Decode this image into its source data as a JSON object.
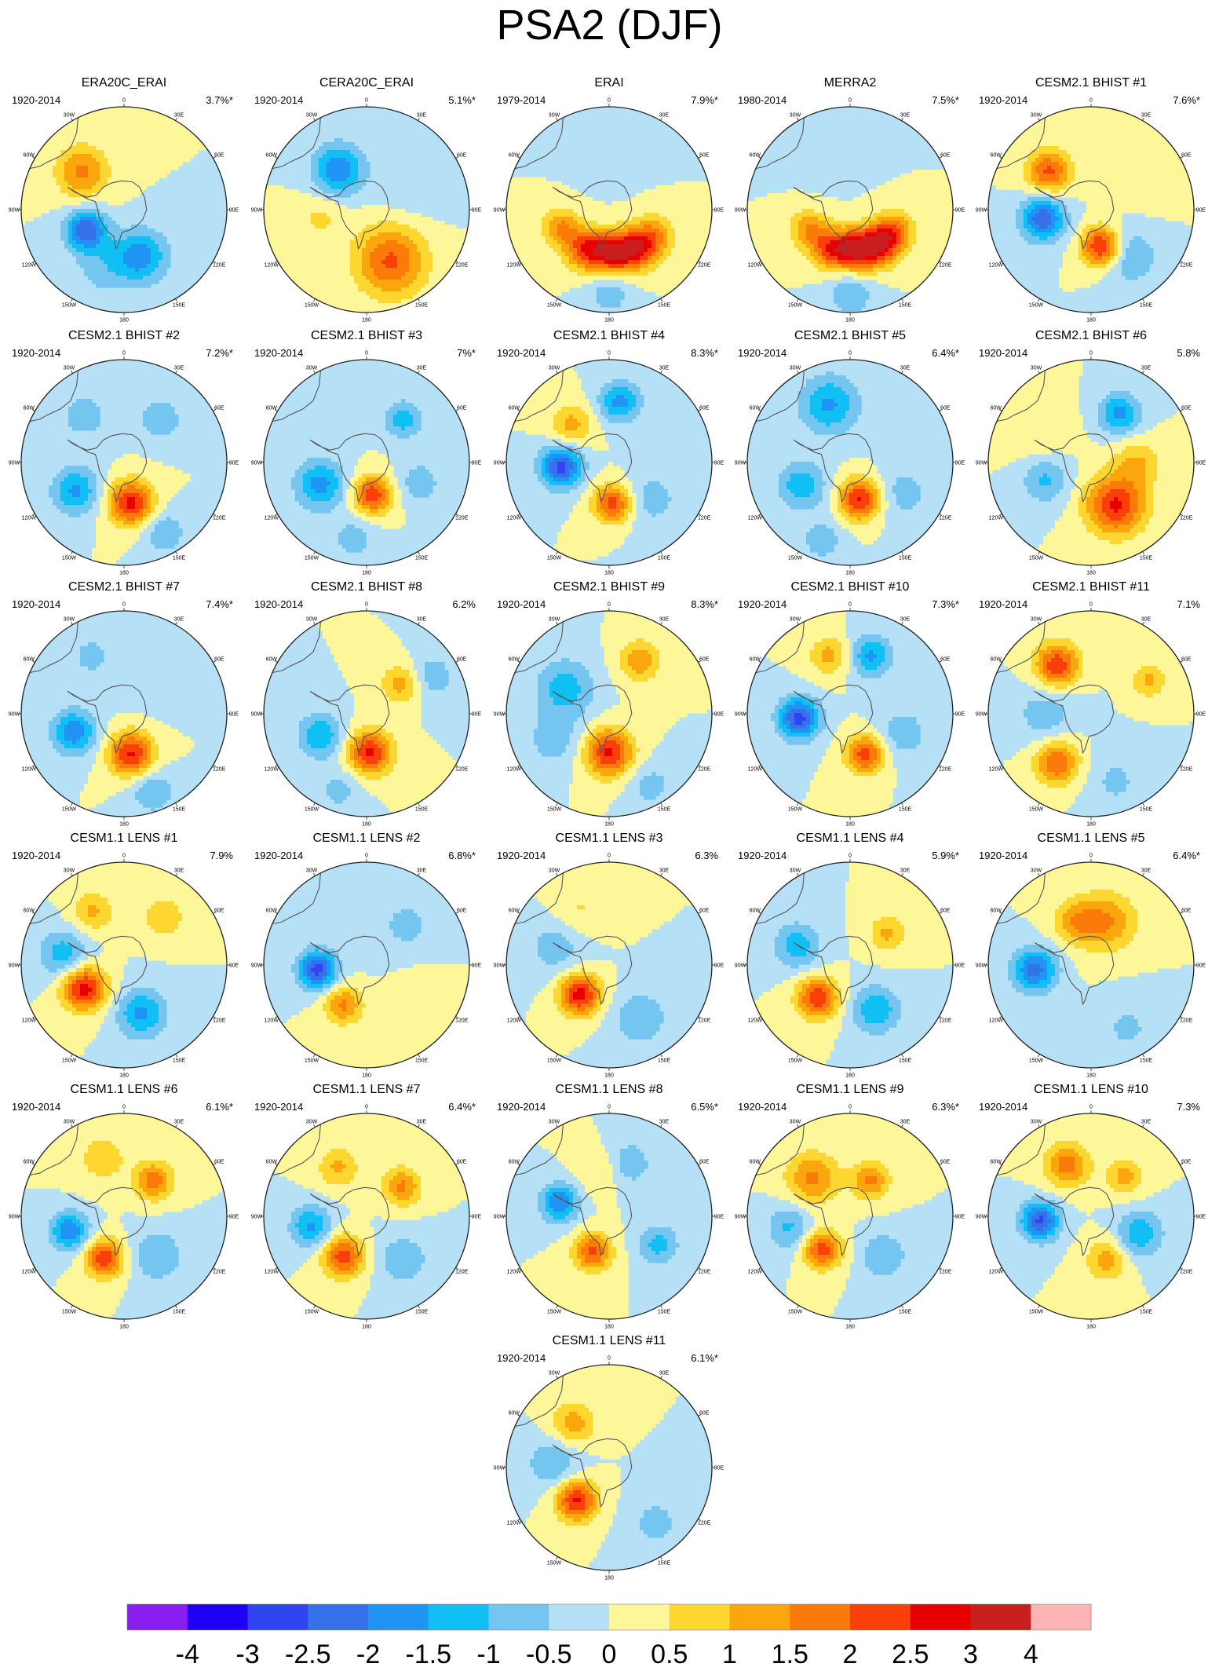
{
  "title": "PSA2 (DJF)",
  "lon_labels": [
    "0",
    "30E",
    "60E",
    "90E",
    "120E",
    "150E",
    "180",
    "150W",
    "120W",
    "90W",
    "60W",
    "30W"
  ],
  "panels": [
    {
      "title": "ERA20C_ERAI",
      "period": "1920-2014",
      "pct": "3.7%*"
    },
    {
      "title": "CERA20C_ERAI",
      "period": "1920-2014",
      "pct": "5.1%*"
    },
    {
      "title": "ERAI",
      "period": "1979-2014",
      "pct": "7.9%*"
    },
    {
      "title": "MERRA2",
      "period": "1980-2014",
      "pct": "7.5%*"
    },
    {
      "title": "CESM2.1 BHIST #1",
      "period": "1920-2014",
      "pct": "7.6%*"
    },
    {
      "title": "CESM2.1 BHIST #2",
      "period": "1920-2014",
      "pct": "7.2%*"
    },
    {
      "title": "CESM2.1 BHIST #3",
      "period": "1920-2014",
      "pct": "7%*"
    },
    {
      "title": "CESM2.1 BHIST #4",
      "period": "1920-2014",
      "pct": "8.3%*"
    },
    {
      "title": "CESM2.1 BHIST #5",
      "period": "1920-2014",
      "pct": "6.4%*"
    },
    {
      "title": "CESM2.1 BHIST #6",
      "period": "1920-2014",
      "pct": "5.8%"
    },
    {
      "title": "CESM2.1 BHIST #7",
      "period": "1920-2014",
      "pct": "7.4%*"
    },
    {
      "title": "CESM2.1 BHIST #8",
      "period": "1920-2014",
      "pct": "6.2%"
    },
    {
      "title": "CESM2.1 BHIST #9",
      "period": "1920-2014",
      "pct": "8.3%*"
    },
    {
      "title": "CESM2.1 BHIST #10",
      "period": "1920-2014",
      "pct": "7.3%*"
    },
    {
      "title": "CESM2.1 BHIST #11",
      "period": "1920-2014",
      "pct": "7.1%"
    },
    {
      "title": "CESM1.1 LENS #1",
      "period": "1920-2014",
      "pct": "7.9%"
    },
    {
      "title": "CESM1.1 LENS #2",
      "period": "1920-2014",
      "pct": "6.8%*"
    },
    {
      "title": "CESM1.1 LENS #3",
      "period": "1920-2014",
      "pct": "6.3%"
    },
    {
      "title": "CESM1.1 LENS #4",
      "period": "1920-2014",
      "pct": "5.9%*"
    },
    {
      "title": "CESM1.1 LENS #5",
      "period": "1920-2014",
      "pct": "6.4%*"
    },
    {
      "title": "CESM1.1 LENS #6",
      "period": "1920-2014",
      "pct": "6.1%*"
    },
    {
      "title": "CESM1.1 LENS #7",
      "period": "1920-2014",
      "pct": "6.4%*"
    },
    {
      "title": "CESM1.1 LENS #8",
      "period": "1920-2014",
      "pct": "6.5%*"
    },
    {
      "title": "CESM1.1 LENS #9",
      "period": "1920-2014",
      "pct": "6.3%*"
    },
    {
      "title": "CESM1.1 LENS #10",
      "period": "1920-2014",
      "pct": "7.3%"
    },
    {
      "title": "CESM1.1 LENS #11",
      "period": "1920-2014",
      "pct": "6.1%*"
    }
  ],
  "colorbar": {
    "labels": [
      "-4",
      "-3",
      "-2.5",
      "-2",
      "-1.5",
      "-1",
      "-0.5",
      "0",
      "0.5",
      "1",
      "1.5",
      "2",
      "2.5",
      "3",
      "4"
    ],
    "colors": [
      "#8a1ef0",
      "#1e00f5",
      "#2e45f0",
      "#3572ea",
      "#2094f5",
      "#10c0f5",
      "#74c6f0",
      "#b5e0f5",
      "#fdf79a",
      "#fdd630",
      "#fca60d",
      "#fb7a0a",
      "#fa3f08",
      "#e80000",
      "#c81e1e",
      "#fdb4b4"
    ]
  }
}
